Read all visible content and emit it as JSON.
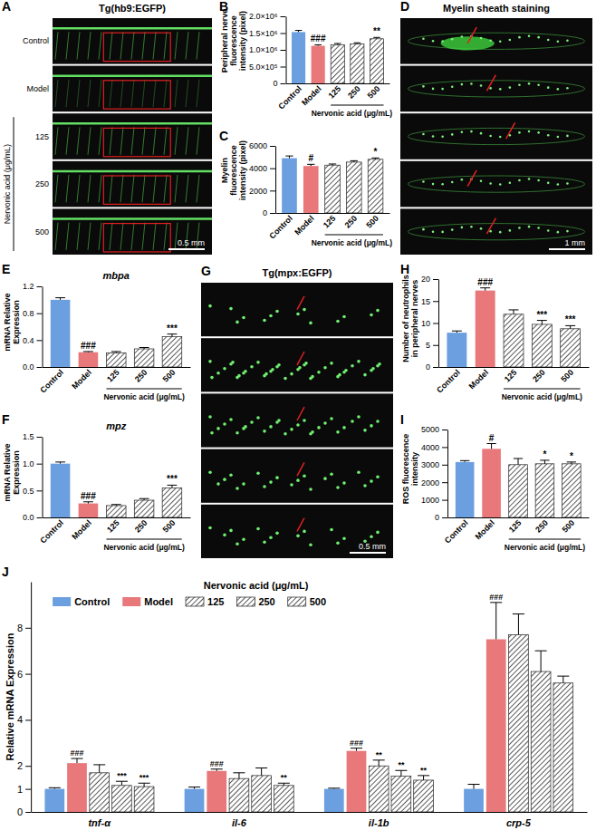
{
  "image_panels": [
    {
      "letter": "A",
      "title": "Tg(hb9:EGFP)",
      "rows": [
        "Control",
        "Model"
      ],
      "group": {
        "label": "Nervonic acid (μg/mL)",
        "rows": [
          "125",
          "250",
          "500"
        ]
      },
      "scale_bar": "0.5 mm"
    },
    {
      "letter": "D",
      "title": "Myelin sheath staining",
      "scale_bar": "1 mm"
    },
    {
      "letter": "G",
      "title": "Tg(mpx:EGFP)",
      "scale_bar": "0.5 mm"
    }
  ],
  "chart_data": [
    {
      "type": "bar",
      "letter": "B",
      "y_label": "Peripheral nerve fluorescence intensity (pixel)",
      "categories": [
        "Control",
        "Model",
        "125",
        "250",
        "500"
      ],
      "group_label": "Nervonic acid (μg/mL)",
      "values": [
        1530000,
        1120000,
        1150000,
        1180000,
        1330000
      ],
      "errors": [
        50000,
        30000,
        40000,
        30000,
        40000
      ],
      "annotations": [
        null,
        "###",
        null,
        null,
        "**"
      ],
      "colors": [
        "#6b9fe0",
        "#e8787a",
        "#ffffff",
        "#ffffff",
        "#ffffff"
      ],
      "ylim": [
        0,
        2000000
      ],
      "yticks": [
        0,
        {
          "value": 500000,
          "label": "5.0×10⁵"
        },
        {
          "value": 1000000,
          "label": "1.0×10⁶"
        },
        {
          "value": 1500000,
          "label": "1.5×10⁶"
        },
        {
          "value": 2000000,
          "label": "2.0×10⁶"
        }
      ]
    },
    {
      "type": "bar",
      "letter": "C",
      "y_label": "Myelin fluorescence intensity (pixel)",
      "categories": [
        "Control",
        "Model",
        "125",
        "250",
        "500"
      ],
      "group_label": "Nervonic acid (μg/mL)",
      "values": [
        4900,
        4200,
        4280,
        4550,
        4800
      ],
      "errors": [
        200,
        150,
        100,
        120,
        120
      ],
      "annotations": [
        null,
        "#",
        null,
        null,
        "*"
      ],
      "colors": [
        "#6b9fe0",
        "#e8787a",
        "#ffffff",
        "#ffffff",
        "#ffffff"
      ],
      "ylim": [
        0,
        6000
      ],
      "yticks": [
        0,
        2000,
        4000,
        6000
      ]
    },
    {
      "type": "bar",
      "letter": "E",
      "title": "mbpa",
      "y_label": "mRNA Relative Expression",
      "categories": [
        "Control",
        "Model",
        "125",
        "250",
        "500"
      ],
      "group_label": "Nervonic acid (μg/mL)",
      "values": [
        1.0,
        0.22,
        0.21,
        0.27,
        0.45
      ],
      "errors": [
        0.03,
        0.01,
        0.02,
        0.02,
        0.04
      ],
      "annotations": [
        null,
        "###",
        null,
        null,
        "***"
      ],
      "colors": [
        "#6b9fe0",
        "#e8787a",
        "#ffffff",
        "#ffffff",
        "#ffffff"
      ],
      "ylim": [
        0,
        1.2
      ],
      "yticks": [
        {
          "value": 0,
          "label": "0.0"
        },
        0.4,
        0.8,
        1.2
      ]
    },
    {
      "type": "bar",
      "letter": "F",
      "title": "mpz",
      "y_label": "mRNA Relative Expression",
      "categories": [
        "Control",
        "Model",
        "125",
        "250",
        "500"
      ],
      "group_label": "Nervonic acid (μg/mL)",
      "values": [
        1.0,
        0.26,
        0.22,
        0.32,
        0.55
      ],
      "errors": [
        0.03,
        0.03,
        0.02,
        0.03,
        0.05
      ],
      "annotations": [
        null,
        "###",
        null,
        null,
        "***"
      ],
      "colors": [
        "#6b9fe0",
        "#e8787a",
        "#ffffff",
        "#ffffff",
        "#ffffff"
      ],
      "ylim": [
        0,
        1.5
      ],
      "yticks": [
        {
          "value": 0,
          "label": "0.0"
        },
        0.5,
        {
          "value": 1,
          "label": "1.0"
        },
        1.5
      ]
    },
    {
      "type": "bar",
      "letter": "H",
      "y_label": "Number of neutrophils in peripheral nerves",
      "categories": [
        "Control",
        "Model",
        "125",
        "250",
        "500"
      ],
      "group_label": "Nervonic acid (μg/mL)",
      "values": [
        7.8,
        17.4,
        12,
        9.7,
        8.7
      ],
      "errors": [
        0.4,
        0.6,
        1.0,
        0.9,
        0.7
      ],
      "annotations": [
        null,
        "###",
        null,
        "***",
        "***"
      ],
      "colors": [
        "#6b9fe0",
        "#e8787a",
        "#ffffff",
        "#ffffff",
        "#ffffff"
      ],
      "ylim": [
        0,
        20
      ],
      "yticks": [
        0,
        5,
        10,
        15,
        20
      ]
    },
    {
      "type": "bar",
      "letter": "I",
      "y_label": "ROS fluorescence intensity",
      "categories": [
        "Control",
        "Model",
        "125",
        "250",
        "500"
      ],
      "group_label": "Nervonic acid (μg/mL)",
      "values": [
        3150,
        3900,
        3000,
        3050,
        3050
      ],
      "errors": [
        80,
        300,
        350,
        200,
        100
      ],
      "annotations": [
        null,
        "#",
        null,
        "*",
        "*"
      ],
      "colors": [
        "#6b9fe0",
        "#e8787a",
        "#ffffff",
        "#ffffff",
        "#ffffff"
      ],
      "ylim": [
        0,
        5000
      ],
      "yticks": [
        0,
        1000,
        2000,
        3000,
        4000,
        5000
      ]
    },
    {
      "type": "bar",
      "letter": "J",
      "y_label": "Relative mRNA Expression",
      "categories": [
        "tnf-α",
        "il-6",
        "il-1b",
        "crp-5"
      ],
      "legend": "top",
      "legend_title": "Nervonic acid (μg/mL)",
      "series": [
        {
          "name": "Control",
          "color": "#6b9fe0",
          "values": [
            1.0,
            1.0,
            1.0,
            1.0
          ],
          "errors": [
            0.05,
            0.08,
            0.03,
            0.2
          ]
        },
        {
          "name": "Model",
          "color": "#e8787a",
          "values": [
            2.12,
            1.78,
            2.65,
            7.5
          ],
          "errors": [
            0.2,
            0.08,
            0.12,
            1.6
          ],
          "annotations": [
            "###",
            "###",
            "###",
            "###"
          ]
        },
        {
          "name": "125",
          "color": "#ffffff",
          "values": [
            1.7,
            1.45,
            2.0,
            7.7
          ],
          "errors": [
            0.35,
            0.25,
            0.25,
            0.9
          ],
          "annotations": [
            null,
            null,
            "**",
            null
          ]
        },
        {
          "name": "250",
          "color": "#ffffff",
          "values": [
            1.15,
            1.58,
            1.55,
            6.1
          ],
          "errors": [
            0.18,
            0.33,
            0.25,
            0.9
          ],
          "annotations": [
            "***",
            null,
            "**",
            null
          ]
        },
        {
          "name": "500",
          "color": "#ffffff",
          "values": [
            1.1,
            1.15,
            1.38,
            5.6
          ],
          "errors": [
            0.15,
            0.1,
            0.2,
            0.3
          ],
          "annotations": [
            "***",
            "**",
            "**",
            null
          ]
        }
      ],
      "ylim": [
        0,
        10
      ],
      "yticks": [
        0,
        1,
        2,
        4,
        6,
        8
      ]
    }
  ]
}
